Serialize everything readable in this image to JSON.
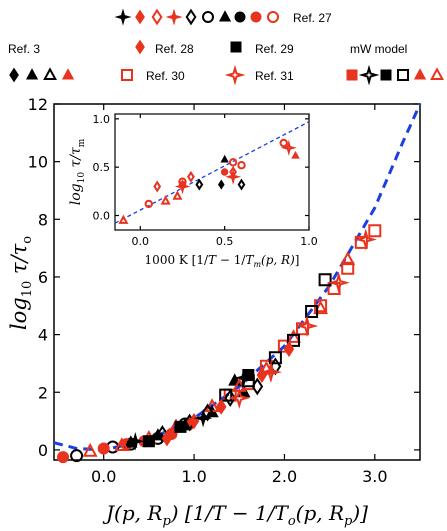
{
  "colors": {
    "red": "#e8331f",
    "black": "#000000",
    "fit": "#1d3fe0"
  },
  "legend": {
    "ref27": "Ref. 27",
    "ref3": "Ref. 3",
    "ref28": "Ref. 28",
    "ref29": "Ref. 29",
    "mw_model": "mW model",
    "ref30": "Ref. 30",
    "ref31": "Ref. 31"
  },
  "chart_data": [
    {
      "type": "scatter",
      "xlabel": "J(p, R_p) [1/T − 1/T_o(p, R_p)]",
      "ylabel": "log10 τ/τ_o",
      "xlim": [
        -0.55,
        3.5
      ],
      "ylim": [
        -0.35,
        12
      ],
      "xticks": [
        {
          "v": 0.0,
          "label": "0.0"
        },
        {
          "v": 1.0,
          "label": "1.0"
        },
        {
          "v": 2.0,
          "label": "2.0"
        },
        {
          "v": 3.0,
          "label": "3.0"
        }
      ],
      "yticks": [
        {
          "v": 0,
          "label": "0"
        },
        {
          "v": 2,
          "label": "2"
        },
        {
          "v": 4,
          "label": "4"
        },
        {
          "v": 6,
          "label": "6"
        },
        {
          "v": 8,
          "label": "8"
        },
        {
          "v": 10,
          "label": "10"
        },
        {
          "v": 12,
          "label": "12"
        }
      ],
      "fit_curve": {
        "style": "dashed",
        "color": "blue",
        "points": [
          [
            -0.55,
            0.25
          ],
          [
            -0.3,
            0.05
          ],
          [
            0,
            0
          ],
          [
            0.5,
            0.35
          ],
          [
            1.0,
            1.1
          ],
          [
            1.5,
            2.2
          ],
          [
            2.0,
            3.6
          ],
          [
            2.5,
            5.7
          ],
          [
            3.0,
            8.4
          ],
          [
            3.3,
            10.6
          ],
          [
            3.5,
            12.0
          ]
        ]
      },
      "series": [
        {
          "marker": "circle-open",
          "color": "black",
          "points": [
            [
              -0.3,
              -0.2
            ],
            [
              0.1,
              0.1
            ],
            [
              0.3,
              0.2
            ],
            [
              0.6,
              0.4
            ],
            [
              0.9,
              0.9
            ]
          ]
        },
        {
          "marker": "circle-filled",
          "color": "red",
          "points": [
            [
              -0.45,
              -0.25
            ],
            [
              0.0,
              0.05
            ],
            [
              0.25,
              0.2
            ],
            [
              0.45,
              0.3
            ],
            [
              0.75,
              0.55
            ],
            [
              0.95,
              0.9
            ]
          ]
        },
        {
          "marker": "triangle-filled",
          "color": "black",
          "points": [
            [
              0.3,
              0.25
            ],
            [
              0.6,
              0.5
            ],
            [
              0.9,
              0.85
            ],
            [
              1.2,
              1.3
            ],
            [
              1.45,
              2.4
            ],
            [
              1.55,
              2.0
            ]
          ]
        },
        {
          "marker": "triangle-open",
          "color": "red",
          "points": [
            [
              -0.15,
              -0.05
            ],
            [
              0.2,
              0.15
            ],
            [
              0.5,
              0.4
            ],
            [
              0.8,
              0.8
            ],
            [
              1.2,
              1.5
            ],
            [
              1.5,
              2.2
            ],
            [
              1.8,
              2.8
            ],
            [
              2.1,
              3.9
            ],
            [
              2.4,
              4.9
            ],
            [
              2.7,
              6.6
            ]
          ]
        },
        {
          "marker": "square-open",
          "color": "red",
          "points": [
            [
              1.4,
              1.9
            ],
            [
              1.6,
              2.3
            ],
            [
              1.8,
              2.9
            ],
            [
              2.0,
              3.6
            ],
            [
              2.2,
              4.2
            ],
            [
              2.4,
              5.0
            ],
            [
              2.55,
              5.6
            ],
            [
              2.7,
              6.3
            ],
            [
              2.85,
              7.2
            ],
            [
              3.0,
              7.6
            ]
          ]
        },
        {
          "marker": "square-open",
          "color": "black",
          "points": [
            [
              1.35,
              1.9
            ],
            [
              1.6,
              2.4
            ],
            [
              1.9,
              3.2
            ],
            [
              2.1,
              3.8
            ],
            [
              2.3,
              4.8
            ],
            [
              2.45,
              5.9
            ]
          ]
        },
        {
          "marker": "diamond-open",
          "color": "black",
          "points": [
            [
              0.65,
              0.55
            ],
            [
              0.95,
              0.95
            ],
            [
              1.15,
              1.3
            ],
            [
              1.4,
              1.8
            ],
            [
              1.7,
              2.2
            ],
            [
              1.9,
              2.9
            ]
          ]
        },
        {
          "marker": "star4-open",
          "color": "red",
          "points": [
            [
              1.5,
              1.8
            ],
            [
              1.85,
              2.7
            ],
            [
              2.25,
              4.3
            ],
            [
              2.6,
              5.8
            ],
            [
              2.9,
              7.3
            ]
          ]
        },
        {
          "marker": "diamond-filled",
          "color": "red",
          "points": [
            [
              0.7,
              0.4
            ],
            [
              1.0,
              1.0
            ],
            [
              1.3,
              1.5
            ],
            [
              1.75,
              2.6
            ],
            [
              2.05,
              3.5
            ]
          ]
        },
        {
          "marker": "square-filled",
          "color": "black",
          "points": [
            [
              0.5,
              0.3
            ],
            [
              0.85,
              0.8
            ],
            [
              1.6,
              2.6
            ]
          ]
        },
        {
          "marker": "cross-filled",
          "color": "black",
          "points": [
            [
              0.35,
              0.3
            ],
            [
              1.1,
              1.1
            ],
            [
              1.55,
              2.5
            ]
          ]
        }
      ]
    },
    {
      "type": "scatter",
      "xlabel": "1000 K [1/T − 1/T_m(p, R)]",
      "ylabel": "log10 τ/τ_m",
      "xlim": [
        -0.15,
        1.0
      ],
      "ylim": [
        -0.15,
        1.05
      ],
      "xticks": [
        {
          "v": 0.0,
          "label": "0.0"
        },
        {
          "v": 0.5,
          "label": "0.5"
        },
        {
          "v": 1.0,
          "label": "1.0"
        }
      ],
      "yticks": [
        {
          "v": 0.0,
          "label": "0.0"
        },
        {
          "v": 0.5,
          "label": "0.5"
        },
        {
          "v": 1.0,
          "label": "1.0"
        }
      ],
      "fit_curve": {
        "style": "dashed",
        "color": "blue",
        "points": [
          [
            -0.15,
            -0.08
          ],
          [
            1.0,
            0.97
          ]
        ]
      },
      "series": [
        {
          "marker": "circle-open",
          "color": "red",
          "points": [
            [
              0.05,
              0.12
            ],
            [
              0.25,
              0.35
            ],
            [
              0.55,
              0.55
            ],
            [
              0.6,
              0.52
            ],
            [
              0.85,
              0.75
            ]
          ]
        },
        {
          "marker": "diamond-open",
          "color": "red",
          "points": [
            [
              0.1,
              0.3
            ],
            [
              0.3,
              0.4
            ],
            [
              0.55,
              0.45
            ]
          ]
        },
        {
          "marker": "triangle-open",
          "color": "red",
          "points": [
            [
              -0.1,
              -0.05
            ],
            [
              0.15,
              0.15
            ],
            [
              0.22,
              0.2
            ]
          ]
        },
        {
          "marker": "star4-open",
          "color": "red",
          "points": [
            [
              0.25,
              0.3
            ],
            [
              0.55,
              0.4
            ],
            [
              0.88,
              0.7
            ]
          ]
        },
        {
          "marker": "diamond-open",
          "color": "black",
          "points": [
            [
              0.35,
              0.32
            ],
            [
              0.6,
              0.32
            ]
          ]
        },
        {
          "marker": "triangle-filled",
          "color": "black",
          "points": [
            [
              0.5,
              0.58
            ]
          ]
        },
        {
          "marker": "triangle-filled",
          "color": "red",
          "points": [
            [
              0.92,
              0.62
            ]
          ]
        },
        {
          "marker": "diamond-filled",
          "color": "black",
          "points": [
            [
              0.48,
              0.32
            ]
          ]
        },
        {
          "marker": "circle-filled",
          "color": "red",
          "points": [
            [
              0.25,
              0.32
            ],
            [
              0.5,
              0.45
            ]
          ]
        }
      ]
    }
  ]
}
